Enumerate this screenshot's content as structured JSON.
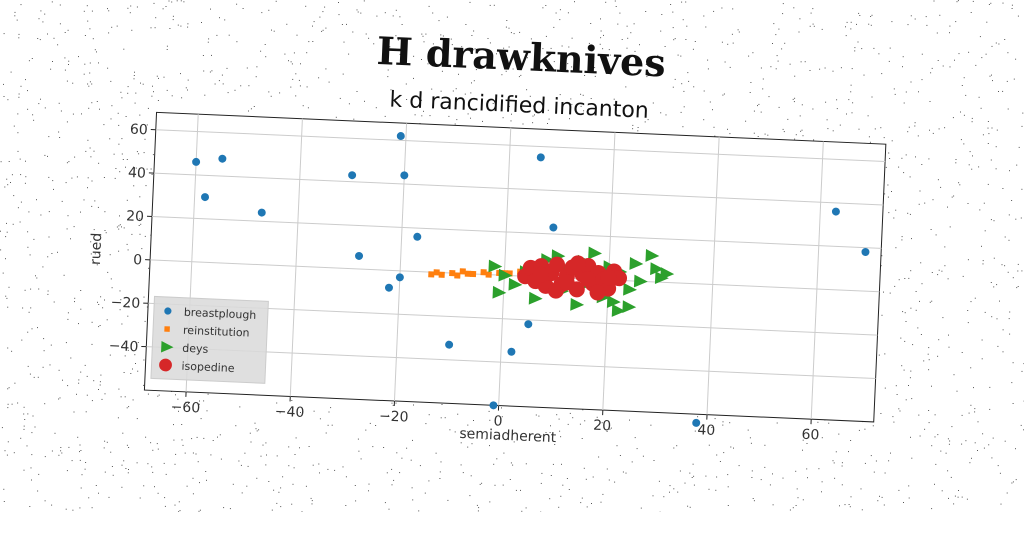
{
  "chart_data": {
    "type": "scatter",
    "title": "H drawknives",
    "subtitle": "k d rancidified incanton",
    "xlabel": "semiadherent",
    "ylabel": "rued",
    "xlim": [
      -68,
      72
    ],
    "ylim": [
      -60,
      68
    ],
    "xticks": [
      -60,
      -40,
      -20,
      0,
      20,
      40,
      60
    ],
    "yticks": [
      -40,
      -20,
      0,
      20,
      40,
      60
    ],
    "grid": true,
    "legend_position": "lower-left",
    "series": [
      {
        "name": "breastplough",
        "marker": "circle",
        "color": "#1f77b4",
        "points": [
          [
            -60,
            46
          ],
          [
            -55,
            48
          ],
          [
            -58,
            30
          ],
          [
            -47,
            24
          ],
          [
            -30,
            43
          ],
          [
            -21,
            62
          ],
          [
            -20,
            44
          ],
          [
            -17,
            16
          ],
          [
            -28,
            6
          ],
          [
            -22,
            -8
          ],
          [
            -20,
            -3
          ],
          [
            -10,
            -33
          ],
          [
            -1,
            -60
          ],
          [
            2,
            -35
          ],
          [
            5,
            -22
          ],
          [
            6,
            55
          ],
          [
            9,
            23
          ],
          [
            38,
            -64
          ],
          [
            63,
            36
          ],
          [
            69,
            18
          ]
        ]
      },
      {
        "name": "reinstitution",
        "marker": "square",
        "color": "#ff7f0e",
        "points": [
          [
            -14,
            -1
          ],
          [
            -12,
            -1
          ],
          [
            -10,
            0
          ],
          [
            -9,
            -1
          ],
          [
            -7,
            0
          ],
          [
            -6,
            0
          ],
          [
            -4,
            1
          ],
          [
            -3,
            0
          ],
          [
            -1,
            1
          ],
          [
            0,
            1
          ],
          [
            1,
            1
          ],
          [
            3,
            2
          ],
          [
            -13,
            0
          ],
          [
            -8,
            1
          ]
        ]
      },
      {
        "name": "deys",
        "marker": "triangle-right",
        "color": "#2ca02c",
        "points": [
          [
            -2,
            4
          ],
          [
            -1,
            -8
          ],
          [
            0,
            0
          ],
          [
            2,
            -4
          ],
          [
            4,
            2
          ],
          [
            6,
            -10
          ],
          [
            8,
            8
          ],
          [
            10,
            10
          ],
          [
            11,
            -6
          ],
          [
            12,
            4
          ],
          [
            14,
            -12
          ],
          [
            15,
            8
          ],
          [
            16,
            -2
          ],
          [
            17,
            12
          ],
          [
            18,
            2
          ],
          [
            19,
            -8
          ],
          [
            20,
            6
          ],
          [
            21,
            -10
          ],
          [
            22,
            4
          ],
          [
            24,
            -4
          ],
          [
            25,
            8
          ],
          [
            26,
            0
          ],
          [
            28,
            12
          ],
          [
            29,
            6
          ],
          [
            30,
            2
          ],
          [
            31,
            4
          ],
          [
            22,
            -14
          ],
          [
            24,
            -12
          ]
        ]
      },
      {
        "name": "isopedine",
        "marker": "circle-large",
        "color": "#d62728",
        "points": [
          [
            4,
            0
          ],
          [
            5,
            4
          ],
          [
            6,
            -2
          ],
          [
            7,
            5
          ],
          [
            8,
            -4
          ],
          [
            9,
            2
          ],
          [
            10,
            6
          ],
          [
            11,
            -3
          ],
          [
            12,
            1
          ],
          [
            13,
            5
          ],
          [
            14,
            -5
          ],
          [
            15,
            2
          ],
          [
            16,
            6
          ],
          [
            17,
            -2
          ],
          [
            18,
            3
          ],
          [
            19,
            0
          ],
          [
            20,
            -4
          ],
          [
            21,
            4
          ],
          [
            22,
            1
          ],
          [
            10,
            -6
          ],
          [
            14,
            7
          ],
          [
            18,
            -6
          ],
          [
            7,
            1
          ],
          [
            16,
            0
          ],
          [
            12,
            -2
          ],
          [
            20,
            1
          ]
        ]
      }
    ]
  }
}
